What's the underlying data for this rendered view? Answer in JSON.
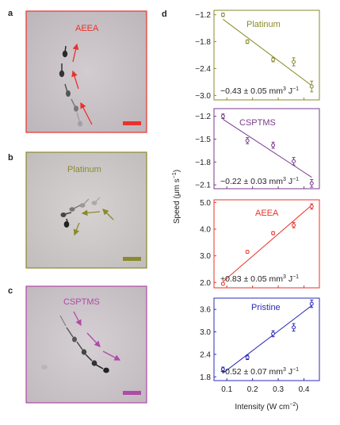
{
  "panels": {
    "a": {
      "label": "a",
      "title": "AEEA",
      "color": "#e8332a"
    },
    "b": {
      "label": "b",
      "title": "Platinum",
      "color": "#8a8a2c"
    },
    "c": {
      "label": "c",
      "title": "CSPTMS",
      "color": "#b04aa8"
    },
    "d": {
      "label": "d"
    }
  },
  "chart_data": {
    "type": "scatter",
    "xlabel": "Intensity (W cm−2)",
    "ylabel": "Speed (μm s−1)",
    "xticks": [
      "0.1",
      "0.2",
      "0.3",
      "0.4"
    ],
    "xlim": [
      0.05,
      0.46
    ],
    "subplots": [
      {
        "name": "Platinum",
        "color": "#8a8a2c",
        "annotation": "−0.43 ± 0.05 mm3 J−1",
        "ylim": [
          -3.1,
          -1.1
        ],
        "yticks": [
          "-1.2",
          "-1.8",
          "-2.4",
          "-3.0"
        ],
        "x": [
          0.085,
          0.18,
          0.28,
          0.36,
          0.43
        ],
        "y": [
          -1.2,
          -1.8,
          -2.2,
          -2.25,
          -2.8
        ],
        "err": [
          0.04,
          0.04,
          0.05,
          0.09,
          0.12
        ],
        "fit": [
          [
            0.085,
            -1.3
          ],
          [
            0.43,
            -2.78
          ]
        ]
      },
      {
        "name": "CSPTMS",
        "color": "#7b3a8c",
        "annotation": "−0.22 ± 0.03 mm3 J−1",
        "ylim": [
          -2.15,
          -1.1
        ],
        "yticks": [
          "-1.2",
          "-1.5",
          "-1.8",
          "-2.1"
        ],
        "x": [
          0.085,
          0.18,
          0.28,
          0.36,
          0.43
        ],
        "y": [
          -1.2,
          -1.52,
          -1.58,
          -1.79,
          -2.08
        ],
        "err": [
          0.03,
          0.04,
          0.04,
          0.05,
          0.05
        ],
        "fit": [
          [
            0.085,
            -1.24
          ],
          [
            0.43,
            -2.0
          ]
        ]
      },
      {
        "name": "AEEA",
        "color": "#e8332a",
        "annotation": "+0.83 ± 0.05 mm3 J−1",
        "ylim": [
          1.8,
          5.1
        ],
        "yticks": [
          "2.0",
          "3.0",
          "4.0",
          "5.0"
        ],
        "x": [
          0.085,
          0.18,
          0.28,
          0.36,
          0.43
        ],
        "y": [
          1.95,
          3.15,
          3.85,
          4.15,
          4.85
        ],
        "err": [
          0.04,
          0.05,
          0.06,
          0.1,
          0.1
        ],
        "fit": [
          [
            0.085,
            2.03
          ],
          [
            0.43,
            4.9
          ]
        ]
      },
      {
        "name": "Pristine",
        "color": "#2b2bb8",
        "annotation": "+0.52 ± 0.07 mm3 J−1",
        "ylim": [
          1.7,
          3.9
        ],
        "yticks": [
          "1.8",
          "2.4",
          "3.0",
          "3.6"
        ],
        "x": [
          0.085,
          0.18,
          0.28,
          0.36,
          0.43
        ],
        "y": [
          2.0,
          2.32,
          2.95,
          3.12,
          3.75
        ],
        "err": [
          0.06,
          0.06,
          0.08,
          0.1,
          0.1
        ],
        "fit": [
          [
            0.085,
            1.9
          ],
          [
            0.43,
            3.7
          ]
        ]
      }
    ]
  }
}
